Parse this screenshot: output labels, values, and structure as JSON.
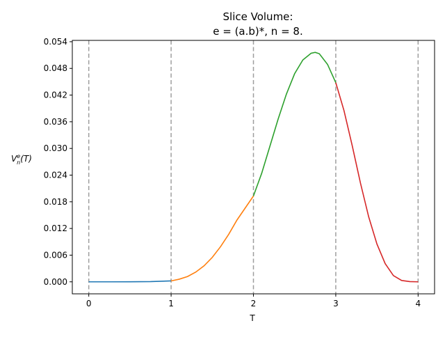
{
  "chart_data": {
    "type": "line",
    "title_line1": "Slice Volume:",
    "title_line2": "e = (a.b)*, n = 8.",
    "xlabel": "T",
    "ylabel_main": "V",
    "ylabel_sup": "e",
    "ylabel_sub": "n",
    "ylabel_arg": "(T)",
    "xlim": [
      -0.2,
      4.2
    ],
    "ylim": [
      -0.0027,
      0.0543
    ],
    "x_ticks": [
      0,
      1,
      2,
      3,
      4
    ],
    "x_tick_labels": [
      "0",
      "1",
      "2",
      "3",
      "4"
    ],
    "y_ticks": [
      0.0,
      0.006,
      0.012,
      0.018,
      0.024,
      0.03,
      0.036,
      0.042,
      0.048,
      0.054
    ],
    "y_tick_labels": [
      "0.000",
      "0.006",
      "0.012",
      "0.018",
      "0.024",
      "0.030",
      "0.036",
      "0.042",
      "0.048",
      "0.054"
    ],
    "vertical_dashed_lines": [
      0,
      1,
      2,
      3,
      4
    ],
    "grid": false,
    "series": [
      {
        "color": "#1f77b4",
        "x": [
          0,
          0.25,
          0.5,
          0.75,
          1.0
        ],
        "y": [
          0.0,
          0.0,
          1e-05,
          5e-05,
          0.0002
        ]
      },
      {
        "color": "#ff7f0e",
        "x": [
          1.0,
          1.1,
          1.2,
          1.3,
          1.4,
          1.5,
          1.6,
          1.7,
          1.8,
          1.9,
          2.0
        ],
        "y": [
          0.0002,
          0.0006,
          0.0012,
          0.0022,
          0.0036,
          0.0055,
          0.0079,
          0.0107,
          0.0139,
          0.0166,
          0.0193
        ]
      },
      {
        "color": "#2ca02c",
        "x": [
          2.0,
          2.1,
          2.2,
          2.3,
          2.4,
          2.5,
          2.6,
          2.7,
          2.75,
          2.8,
          2.9,
          3.0
        ],
        "y": [
          0.0193,
          0.0244,
          0.0305,
          0.0366,
          0.0422,
          0.0468,
          0.0499,
          0.0514,
          0.0516,
          0.0513,
          0.0489,
          0.0448
        ]
      },
      {
        "color": "#d62728",
        "x": [
          3.0,
          3.1,
          3.2,
          3.3,
          3.4,
          3.5,
          3.6,
          3.7,
          3.8,
          3.9,
          4.0
        ],
        "y": [
          0.0448,
          0.0385,
          0.0306,
          0.0222,
          0.0146,
          0.0085,
          0.0041,
          0.0014,
          0.0003,
          5e-05,
          0.0
        ]
      }
    ]
  }
}
